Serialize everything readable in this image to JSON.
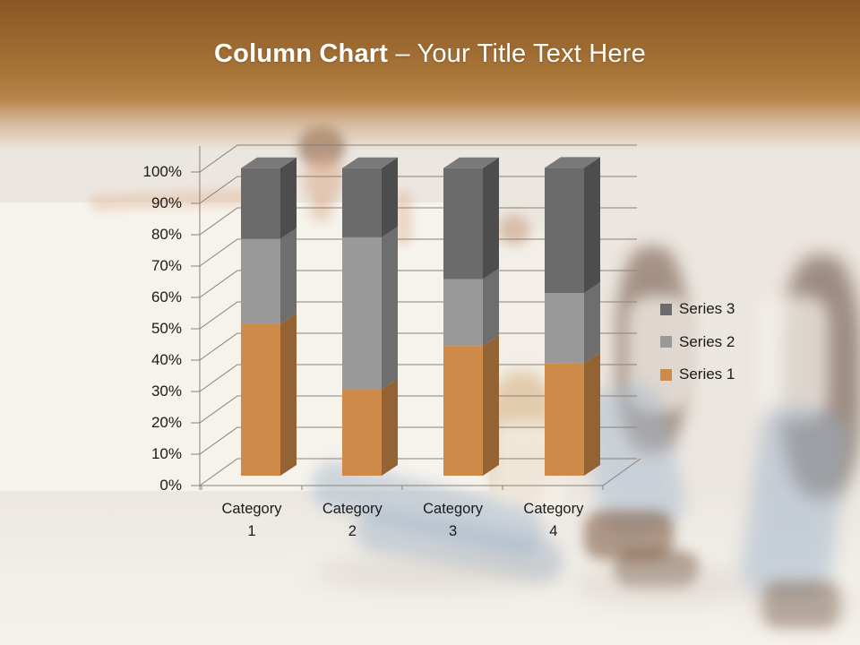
{
  "slide": {
    "title": {
      "bold": "Column Chart",
      "rest": " – Your Title Text Here"
    },
    "header_colors": {
      "gradient_top": "#8A5724",
      "gradient_middle": "#A87538",
      "gradient_fade": "#C49668",
      "title_text": "#FFFFFF"
    },
    "background_color": "#F1ECE6"
  },
  "chart_data": {
    "type": "bar",
    "subtype": "3d-100-percent-stacked-column",
    "categories": [
      "Category 1",
      "Category 2",
      "Category 3",
      "Category 4"
    ],
    "series": [
      {
        "name": "Series 1",
        "color": "#CE8A48",
        "percent_values": [
          49.4,
          28.1,
          42.2,
          36.6
        ]
      },
      {
        "name": "Series 2",
        "color": "#999999",
        "percent_values": [
          27.6,
          49.4,
          21.7,
          22.8
        ]
      },
      {
        "name": "Series 3",
        "color": "#6B6B6B",
        "percent_values": [
          23.0,
          22.5,
          36.1,
          40.7
        ]
      }
    ],
    "y_axis": {
      "min": 0,
      "max": 100,
      "unit": "%",
      "tick_labels": [
        "100%",
        "90%",
        "80%",
        "70%",
        "60%",
        "50%",
        "40%",
        "30%",
        "20%",
        "10%",
        "0%"
      ]
    },
    "legend": {
      "position": "right",
      "entries": [
        "Series 3",
        "Series 2",
        "Series 1"
      ]
    },
    "grid": true,
    "axis_line_color": "#8B8179",
    "label_text_color": "#1A1A1A"
  }
}
